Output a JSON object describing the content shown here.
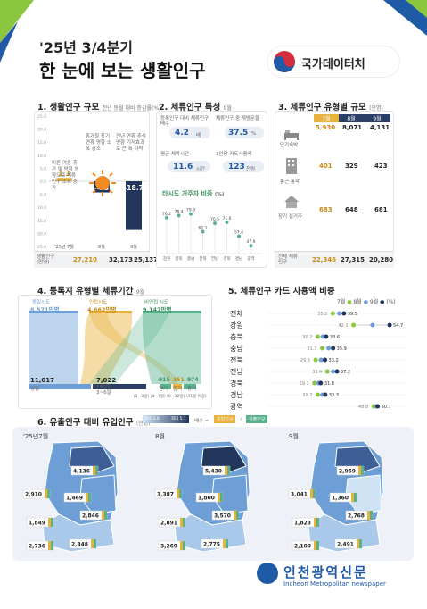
{
  "header": {
    "period": "'25년 3/4분기",
    "title": "한 눈에 보는 생활인구",
    "org": "국가데이터처",
    "brand_colors": {
      "green": "#8cc63f",
      "blue": "#1f5aa6",
      "red": "#d62d3c",
      "navy": "#22365c"
    }
  },
  "sec1": {
    "title": "1. 생활인구 규모",
    "note": "전년 동월 대비 증감률(%)",
    "yticks": [
      "25.0",
      "20.0",
      "15.0",
      "10.0",
      "5.0",
      "0.0",
      "-5.0",
      "-10.0",
      "-15.0",
      "-20.0",
      "-25.0"
    ],
    "months": [
      "'25년 7월",
      "8월",
      "9월"
    ],
    "bars": [
      1.3,
      -4.3,
      -18.7
    ],
    "bar_labels": [
      "1.3",
      "-4.3",
      "-18.7"
    ],
    "ann1": "이른 여름 휴가 및 방학 영향으로 체류인구 소폭 증가",
    "ann2": "휴가철 장기 연휴 영향 소폭 감소",
    "ann3": "전년 연휴 추석 영향 기저효과로 큰 폭 하락",
    "foot_label": "생활인구(만명)",
    "foot_values": [
      "27,210",
      "32,173",
      "25,137"
    ]
  },
  "sec2": {
    "title": "2. 체류인구 특성",
    "note": "9월",
    "stat1_label": "등록인구 대비 체류인구 배수",
    "stat1_value": "4.2",
    "stat1_unit": "배",
    "stat2_label": "체류인구 중 재방문율",
    "stat2_value": "37.5",
    "stat2_unit": "%",
    "stat3_label": "평균 체류시간",
    "stat3_value": "11.6",
    "stat3_unit": "시간",
    "stat4_label": "1인당 카드사용액",
    "stat4_value": "123",
    "stat4_unit": "천원",
    "sub_title": "타시도 거주자 비중",
    "sub_unit": "(%)",
    "regions": [
      "강원",
      "충북",
      "충남",
      "전북",
      "전남",
      "경북",
      "경남",
      "광역"
    ],
    "values": [
      76.2,
      78.4,
      79.9,
      62.1,
      70.5,
      71.6,
      57.4,
      47.9
    ],
    "value_labels": [
      "76.2",
      "78.4",
      "79.9",
      "62.1",
      "70.5",
      "71.6",
      "57.4",
      "47.9"
    ]
  },
  "sec3": {
    "title": "3. 체류인구 유형별 규모",
    "note": "만명",
    "months": [
      "7월",
      "8월",
      "9월"
    ],
    "rows": [
      {
        "label": "단기숙박",
        "values": [
          "5,930",
          "8,071",
          "4,131"
        ]
      },
      {
        "label": "통근·통학",
        "values": [
          "401",
          "329",
          "423"
        ]
      },
      {
        "label": "장기 실거주",
        "values": [
          "683",
          "648",
          "681"
        ]
      }
    ],
    "foot_label": "전체 체류인구",
    "foot_values": [
      "22,346",
      "27,315",
      "20,280"
    ]
  },
  "sec4": {
    "title": "4. 등록지 유형별 체류기간",
    "note": "9월",
    "sources": [
      {
        "label": "동일시도",
        "value": "6,571만명",
        "color": "#6d9fd6"
      },
      {
        "label": "인접시도",
        "value": "4,662만명",
        "color": "#e8b23c"
      },
      {
        "label": "비인접 시도",
        "value": "9,147만명",
        "color": "#57b28d"
      }
    ],
    "targets": [
      {
        "value": "11,017",
        "label": "당일",
        "color": "#6d9fd6"
      },
      {
        "value": "7,022",
        "label": "1박2일\n3~6일",
        "color": "#2a3e66"
      },
      {
        "value": "915",
        "label": "단기",
        "color": "#57b28d"
      },
      {
        "value": "351",
        "label": "중기",
        "color": "#e8b23c"
      },
      {
        "value": "974",
        "label": "장기",
        "color": "#57b28d"
      }
    ],
    "foot": "(1~3일) (4~7일) (8~30일) (31일 이상)"
  },
  "sec5": {
    "title": "5. 체류인구 카드 사용액 비중",
    "legend": [
      "7월",
      "8월",
      "9월"
    ],
    "unit": "(%)",
    "regions": [
      {
        "name": "전체",
        "v7": 35.2,
        "v9": 39.5,
        "l7": "35.2",
        "l9": "39.5"
      },
      {
        "name": "강원",
        "v7": 42.1,
        "v9": 54.7,
        "l7": "42.1",
        "l9": "54.7"
      },
      {
        "name": "충북",
        "v7": 30.2,
        "v9": 33.6,
        "l7": "30.2",
        "l9": "33.6"
      },
      {
        "name": "충남",
        "v7": 31.7,
        "v9": 35.9,
        "l7": "31.7",
        "l9": "35.9"
      },
      {
        "name": "전북",
        "v7": 29.5,
        "v9": 33.2,
        "l7": "29.5",
        "l9": "33.2"
      },
      {
        "name": "전남",
        "v7": 33.4,
        "v9": 37.2,
        "l7": "33.4",
        "l9": "37.2"
      },
      {
        "name": "경북",
        "v7": 29.1,
        "v9": 31.8,
        "l7": "29.1",
        "l9": "31.8"
      },
      {
        "name": "경남",
        "v7": 30.2,
        "v9": 33.3,
        "l7": "30.2",
        "l9": "33.3"
      },
      {
        "name": "광역",
        "v7": 48.8,
        "v9": 50.7,
        "l7": "48.8",
        "l9": "50.7"
      }
    ]
  },
  "sec6": {
    "title": "6. 유출인구 대비 유입인구",
    "note": "만명",
    "legend_low": "최소 1.6",
    "legend_high": "최대 5.1",
    "legend_key": "배수 =",
    "legend_in": "유입인구",
    "legend_out": "유출인구",
    "maps": [
      {
        "month": "'25년7월",
        "labels": [
          "4,136",
          "2,910",
          "1,469",
          "2,846",
          "1,849",
          "2,736",
          "2,348"
        ]
      },
      {
        "month": "8월",
        "labels": [
          "5,430",
          "3,387",
          "1,800",
          "3,570",
          "2,891",
          "3,269",
          "2,775"
        ]
      },
      {
        "month": "9월",
        "labels": [
          "2,959",
          "3,041",
          "1,360",
          "2,768",
          "1,823",
          "2,100",
          "2,491"
        ]
      }
    ]
  },
  "footer": {
    "logo_text": "인천광역신문",
    "logo_sub": "Incheon Metropolitan newspaper"
  }
}
